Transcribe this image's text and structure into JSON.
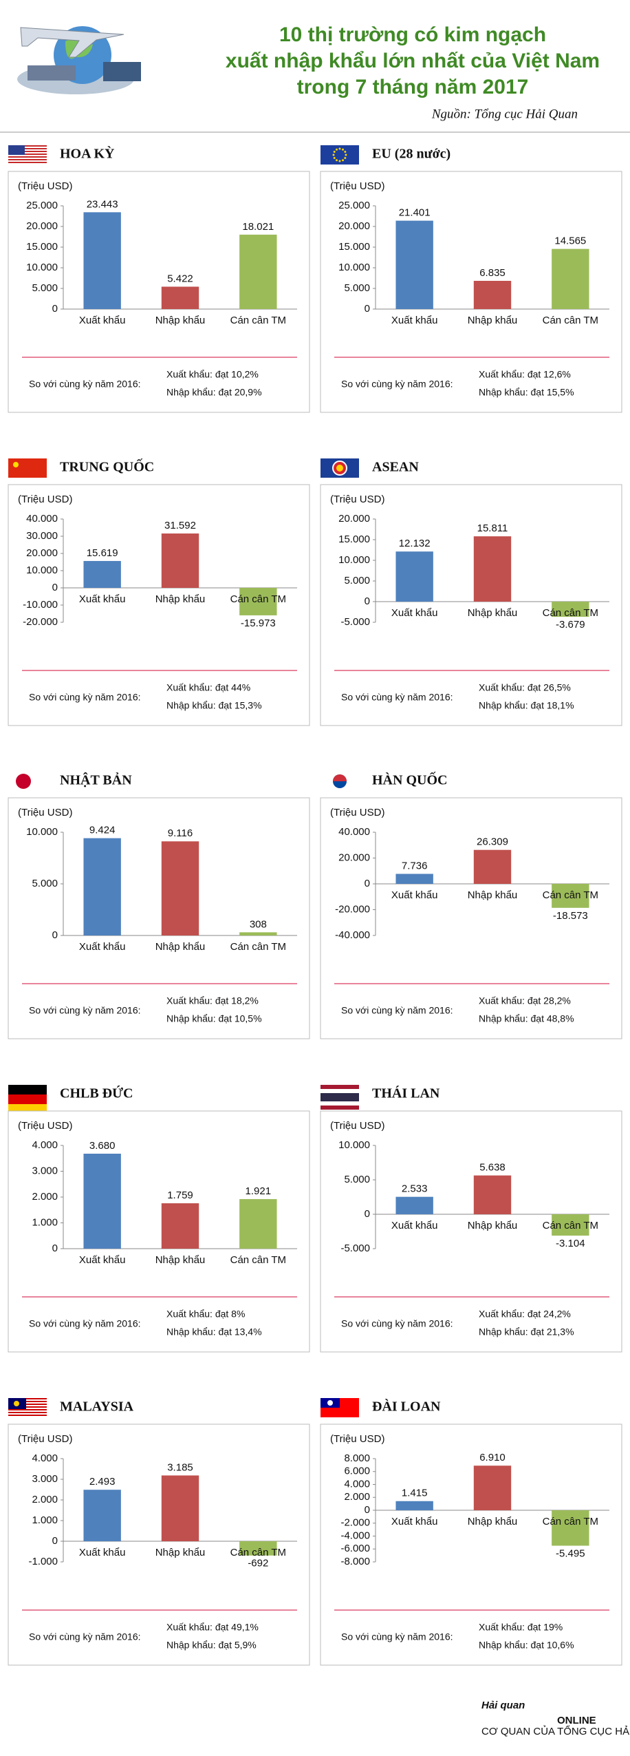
{
  "header": {
    "title": [
      "10 thị trường có kim ngạch",
      "xuất nhập khẩu lớn nhất của Việt Nam",
      "trong 7 tháng năm 2017"
    ],
    "source": "Nguồn: Tổng cục Hải Quan"
  },
  "chart_data": [
    {
      "type": "bar",
      "title": "HOA KỲ",
      "y_label": "(Triệu USD)",
      "categories": [
        "Xuất khẩu",
        "Nhập khẩu",
        "Cán cân TM"
      ],
      "values": [
        23443,
        5422,
        18021
      ],
      "value_labels": [
        "23.443",
        "5.422",
        "18.021"
      ],
      "colors": [
        "#4f81bd",
        "#c0504d",
        "#9bbb59"
      ],
      "ylim": [
        0,
        25000
      ],
      "yticks": [
        0,
        {
          "value": 5000,
          "label": "5.000"
        },
        {
          "value": 10000,
          "label": "10.000"
        },
        {
          "value": 15000,
          "label": "15.000"
        },
        {
          "value": 20000,
          "label": "20.000"
        },
        {
          "value": 25000,
          "label": "25.000"
        }
      ],
      "comparison": "So với cùng kỳ năm 2016:",
      "notes": [
        "Xuất khẩu: đạt 10,2%",
        "Nhập khẩu: đạt 20,9%"
      ]
    },
    {
      "type": "bar",
      "title": "EU (28 nước)",
      "y_label": "(Triệu USD)",
      "categories": [
        "Xuất khẩu",
        "Nhập khẩu",
        "Cán cân TM"
      ],
      "values": [
        21401,
        6835,
        14565
      ],
      "value_labels": [
        "21.401",
        "6.835",
        "14.565"
      ],
      "colors": [
        "#4f81bd",
        "#c0504d",
        "#9bbb59"
      ],
      "ylim": [
        0,
        25000
      ],
      "yticks": [
        0,
        {
          "value": 5000,
          "label": "5.000"
        },
        {
          "value": 10000,
          "label": "10.000"
        },
        {
          "value": 15000,
          "label": "15.000"
        },
        {
          "value": 20000,
          "label": "20.000"
        },
        {
          "value": 25000,
          "label": "25.000"
        }
      ],
      "comparison": "So với cùng kỳ năm 2016:",
      "notes": [
        "Xuất khẩu: đạt 12,6%",
        "Nhập khẩu: đạt 15,5%"
      ]
    },
    {
      "type": "bar",
      "title": "TRUNG QUỐC",
      "y_label": "(Triệu USD)",
      "categories": [
        "Xuất khẩu",
        "Nhập khẩu",
        "Cán cân TM"
      ],
      "values": [
        15619,
        31592,
        -15973
      ],
      "value_labels": [
        "15.619",
        "31.592",
        "-15.973"
      ],
      "colors": [
        "#4f81bd",
        "#c0504d",
        "#9bbb59"
      ],
      "ylim": [
        -20000,
        40000
      ],
      "yticks": [
        {
          "value": -20000,
          "label": "-20.000"
        },
        {
          "value": -10000,
          "label": "-10.000"
        },
        0,
        {
          "value": 10000,
          "label": "10.000"
        },
        {
          "value": 20000,
          "label": "20.000"
        },
        {
          "value": 30000,
          "label": "30.000"
        },
        {
          "value": 40000,
          "label": "40.000"
        }
      ],
      "comparison": "So với cùng kỳ năm 2016:",
      "notes": [
        "Xuất khẩu: đạt 44%",
        "Nhập khẩu: đạt 15,3%"
      ]
    },
    {
      "type": "bar",
      "title": "ASEAN",
      "y_label": "(Triệu USD)",
      "categories": [
        "Xuất khẩu",
        "Nhập khẩu",
        "Cán cân TM"
      ],
      "values": [
        12132,
        15811,
        -3679
      ],
      "value_labels": [
        "12.132",
        "15.811",
        "-3.679"
      ],
      "colors": [
        "#4f81bd",
        "#c0504d",
        "#9bbb59"
      ],
      "ylim": [
        -5000,
        20000
      ],
      "yticks": [
        {
          "value": -5000,
          "label": "-5.000"
        },
        0,
        {
          "value": 5000,
          "label": "5.000"
        },
        {
          "value": 10000,
          "label": "10.000"
        },
        {
          "value": 15000,
          "label": "15.000"
        },
        {
          "value": 20000,
          "label": "20.000"
        }
      ],
      "comparison": "So với cùng kỳ năm 2016:",
      "notes": [
        "Xuất khẩu: đạt 26,5%",
        "Nhập khẩu: đạt 18,1%"
      ]
    },
    {
      "type": "bar",
      "title": "NHẬT BẢN",
      "y_label": "(Triệu USD)",
      "categories": [
        "Xuất khẩu",
        "Nhập khẩu",
        "Cán cân TM"
      ],
      "values": [
        9424,
        9116,
        308
      ],
      "value_labels": [
        "9.424",
        "9.116",
        "308"
      ],
      "colors": [
        "#4f81bd",
        "#c0504d",
        "#9bbb59"
      ],
      "ylim": [
        0,
        10000
      ],
      "yticks": [
        0,
        {
          "value": 5000,
          "label": "5.000"
        },
        {
          "value": 10000,
          "label": "10.000"
        }
      ],
      "comparison": "So với cùng kỳ năm 2016:",
      "notes": [
        "Xuất khẩu: đạt 18,2%",
        "Nhập khẩu: đạt 10,5%"
      ]
    },
    {
      "type": "bar",
      "title": "HÀN QUỐC",
      "y_label": "(Triệu USD)",
      "categories": [
        "Xuất khẩu",
        "Nhập khẩu",
        "Cán cân TM"
      ],
      "values": [
        7736,
        26309,
        -18573
      ],
      "value_labels": [
        "7.736",
        "26.309",
        "-18.573"
      ],
      "colors": [
        "#4f81bd",
        "#c0504d",
        "#9bbb59"
      ],
      "ylim": [
        -40000,
        40000
      ],
      "yticks": [
        {
          "value": -40000,
          "label": "-40.000"
        },
        {
          "value": -20000,
          "label": "-20.000"
        },
        0,
        {
          "value": 20000,
          "label": "20.000"
        },
        {
          "value": 40000,
          "label": "40.000"
        }
      ],
      "comparison": "So với cùng kỳ năm 2016:",
      "notes": [
        "Xuất khẩu: đạt 28,2%",
        "Nhập khẩu: đạt 48,8%"
      ]
    },
    {
      "type": "bar",
      "title": "CHLB ĐỨC",
      "y_label": "(Triệu USD)",
      "categories": [
        "Xuất khẩu",
        "Nhập khẩu",
        "Cán cân TM"
      ],
      "values": [
        3680,
        1759,
        1921
      ],
      "value_labels": [
        "3.680",
        "1.759",
        "1.921"
      ],
      "colors": [
        "#4f81bd",
        "#c0504d",
        "#9bbb59"
      ],
      "ylim": [
        0,
        4000
      ],
      "yticks": [
        0,
        {
          "value": 1000,
          "label": "1.000"
        },
        {
          "value": 2000,
          "label": "2.000"
        },
        {
          "value": 3000,
          "label": "3.000"
        },
        {
          "value": 4000,
          "label": "4.000"
        }
      ],
      "comparison": "So với cùng kỳ năm 2016:",
      "notes": [
        "Xuất khẩu: đạt 8%",
        "Nhập khẩu: đạt 13,4%"
      ]
    },
    {
      "type": "bar",
      "title": "THÁI LAN",
      "y_label": "(Triệu USD)",
      "categories": [
        "Xuất khẩu",
        "Nhập khẩu",
        "Cán cân TM"
      ],
      "values": [
        2533,
        5638,
        -3104
      ],
      "value_labels": [
        "2.533",
        "5.638",
        "-3.104"
      ],
      "colors": [
        "#4f81bd",
        "#c0504d",
        "#9bbb59"
      ],
      "ylim": [
        -5000,
        10000
      ],
      "yticks": [
        {
          "value": -5000,
          "label": "-5.000"
        },
        0,
        {
          "value": 5000,
          "label": "5.000"
        },
        {
          "value": 10000,
          "label": "10.000"
        }
      ],
      "comparison": "So với cùng kỳ năm 2016:",
      "notes": [
        "Xuất khẩu: đạt 24,2%",
        "Nhập khẩu: đạt 21,3%"
      ]
    },
    {
      "type": "bar",
      "title": "MALAYSIA",
      "y_label": "(Triệu USD)",
      "categories": [
        "Xuất khẩu",
        "Nhập khẩu",
        "Cán cân TM"
      ],
      "values": [
        2493,
        3185,
        -692
      ],
      "value_labels": [
        "2.493",
        "3.185",
        "-692"
      ],
      "colors": [
        "#4f81bd",
        "#c0504d",
        "#9bbb59"
      ],
      "ylim": [
        -1000,
        4000
      ],
      "yticks": [
        {
          "value": -1000,
          "label": "-1.000"
        },
        0,
        {
          "value": 1000,
          "label": "1.000"
        },
        {
          "value": 2000,
          "label": "2.000"
        },
        {
          "value": 3000,
          "label": "3.000"
        },
        {
          "value": 4000,
          "label": "4.000"
        }
      ],
      "comparison": "So với cùng kỳ năm 2016:",
      "notes": [
        "Xuất khẩu: đạt 49,1%",
        "Nhập khẩu: đạt 5,9%"
      ]
    },
    {
      "type": "bar",
      "title": "ĐÀI LOAN",
      "y_label": "(Triệu USD)",
      "categories": [
        "Xuất khẩu",
        "Nhập khẩu",
        "Cán cân TM"
      ],
      "values": [
        1415,
        6910,
        -5495
      ],
      "value_labels": [
        "1.415",
        "6.910",
        "-5.495"
      ],
      "colors": [
        "#4f81bd",
        "#c0504d",
        "#9bbb59"
      ],
      "ylim": [
        -8000,
        8000
      ],
      "yticks": [
        {
          "value": -8000,
          "label": "-8.000"
        },
        {
          "value": -6000,
          "label": "-6.000"
        },
        {
          "value": -4000,
          "label": "-4.000"
        },
        {
          "value": -2000,
          "label": "-2.000"
        },
        0,
        {
          "value": 2000,
          "label": "2.000"
        },
        {
          "value": 4000,
          "label": "4.000"
        },
        {
          "value": 6000,
          "label": "6.000"
        },
        {
          "value": 8000,
          "label": "8.000"
        }
      ],
      "comparison": "So với cùng kỳ năm 2016:",
      "notes": [
        "Xuất khẩu: đạt 19%",
        "Nhập khẩu: đạt 10,6%"
      ]
    }
  ],
  "footer": {
    "logo": "Hải quan",
    "logo_sub": "ONLINE",
    "tagline": "CƠ QUAN CỦA TỔNG CỤC HẢI QUAN"
  }
}
